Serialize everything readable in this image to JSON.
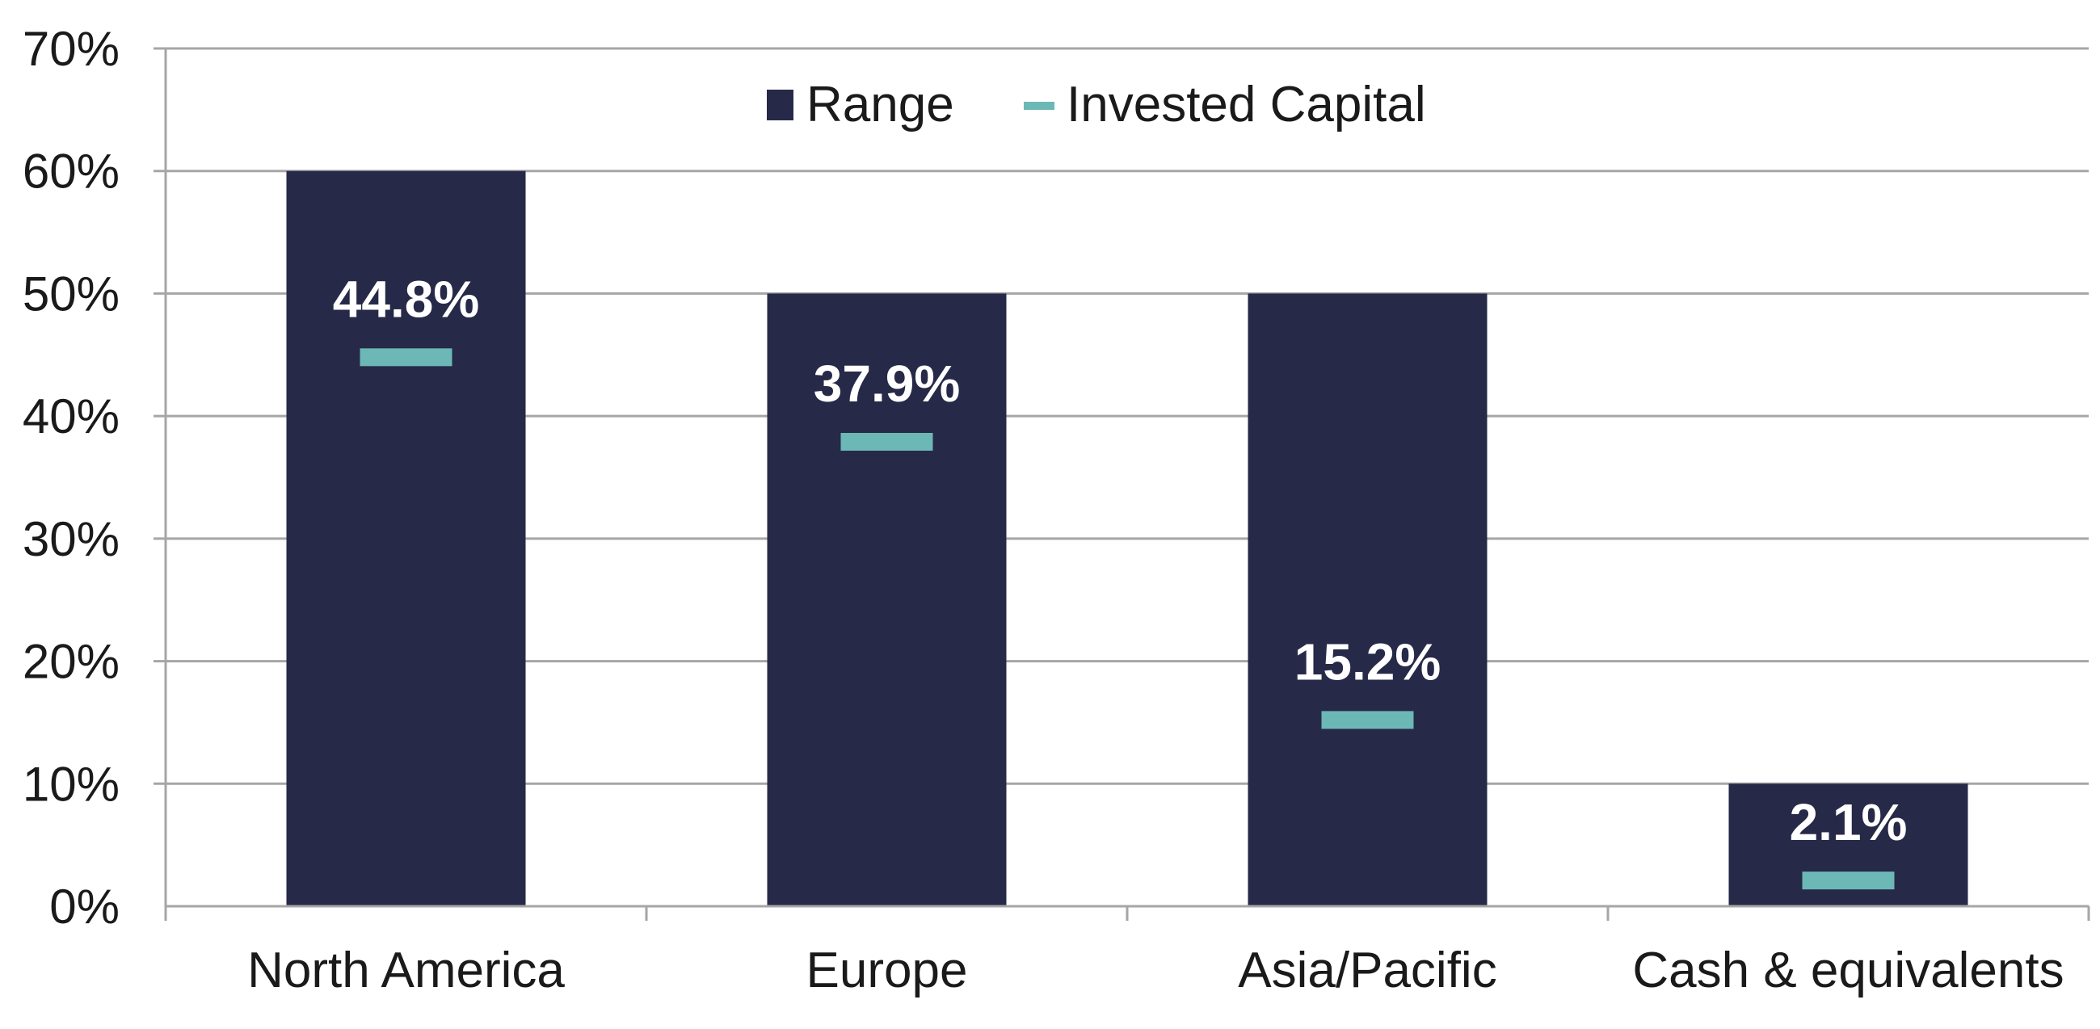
{
  "chart_data": {
    "type": "bar",
    "categories": [
      "North America",
      "Europe",
      "Asia/Pacific",
      "Cash & equivalents"
    ],
    "series": [
      {
        "name": "Range",
        "values": [
          60,
          50,
          50,
          10
        ]
      },
      {
        "name": "Invested Capital",
        "values": [
          44.8,
          37.9,
          15.2,
          2.1
        ]
      }
    ],
    "data_labels": [
      "44.8%",
      "37.9%",
      "15.2%",
      "2.1%"
    ],
    "y_ticks": [
      "0%",
      "10%",
      "20%",
      "30%",
      "40%",
      "50%",
      "60%",
      "70%"
    ],
    "ylim": [
      0,
      70
    ],
    "grid": true,
    "legend_position": "top-center",
    "title": "",
    "xlabel": "",
    "ylabel": "",
    "colors": {
      "range": "#262947",
      "invested_capital": "#6cb8b6",
      "label_on_bar": "#ffffff",
      "label_above_bar": "#262947",
      "grid": "#a6a6a6"
    }
  }
}
